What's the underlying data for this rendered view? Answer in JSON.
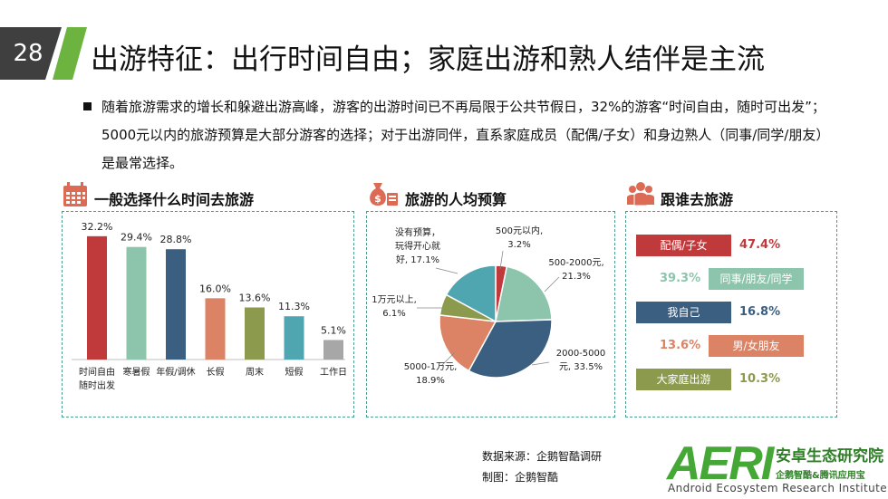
{
  "page_number": "28",
  "title": "出游特征：出行时间自由；家庭出游和熟人结伴是主流",
  "intro_text": "随着旅游需求的增长和躲避出游高峰，游客的出游时间已不再局限于公共节假日，32%的游客“时间自由，随时可出发”；5000元以内的旅游预算是大部分游客的选择；对于出游同伴，直系家庭成员（配偶/子女）和身边熟人（同事/同学/朋友）是最常选择。",
  "sections": {
    "time": {
      "title": "一般选择什么时间去旅游",
      "icon": "calendar-icon"
    },
    "budget": {
      "title": "旅游的人均预算",
      "icon": "money-bag-icon"
    },
    "companion": {
      "title": "跟谁去旅游",
      "icon": "group-icon"
    }
  },
  "chart_data": [
    {
      "type": "bar",
      "categories": [
        "时间自由\n随时出发",
        "寒暑假",
        "年假/调休",
        "长假",
        "周末",
        "短假",
        "工作日"
      ],
      "values": [
        32.2,
        29.4,
        28.8,
        16.0,
        13.6,
        11.3,
        5.1
      ],
      "value_labels": [
        "32.2%",
        "29.4%",
        "28.8%",
        "16.0%",
        "13.6%",
        "11.3%",
        "5.1%"
      ],
      "colors": [
        "#c0393b",
        "#8dc5ac",
        "#3b5f80",
        "#dc8265",
        "#8c9a4e",
        "#4fa6b1",
        "#a7a7a7"
      ],
      "ylim": [
        0,
        35
      ],
      "grid": false
    },
    {
      "type": "pie",
      "labels": [
        "500元以内,",
        "500-2000元,",
        "2000-5000元,",
        "5000-1万元,",
        "1万元以上,",
        "没有预算，玩得开心就好,"
      ],
      "values": [
        3.2,
        21.3,
        33.5,
        18.9,
        6.1,
        17.1
      ],
      "value_labels": [
        "3.2%",
        "21.3%",
        "33.5%",
        "18.9%",
        "6.1%",
        "17.1%"
      ],
      "label_lines": [
        [
          "500元以内,",
          "3.2%"
        ],
        [
          "500-2000元,",
          "21.3%"
        ],
        [
          "2000-5000",
          "元, 33.5%"
        ],
        [
          "5000-1万元,",
          "18.9%"
        ],
        [
          "1万元以上,",
          "6.1%"
        ],
        [
          "没有预算，",
          "玩得开心就",
          "好, 17.1%"
        ]
      ],
      "colors": [
        "#c0393b",
        "#8dc5ac",
        "#3b5f80",
        "#dc8265",
        "#8c9a4e",
        "#4fa6b1"
      ]
    },
    {
      "type": "table",
      "rows": [
        {
          "label": "配偶/子女",
          "value": 47.4,
          "value_label": "47.4%",
          "color": "#c0393b",
          "side": "left"
        },
        {
          "label": "同事/朋友/同学",
          "value": 39.3,
          "value_label": "39.3%",
          "color": "#8dc5ac",
          "side": "right"
        },
        {
          "label": "我自己",
          "value": 16.8,
          "value_label": "16.8%",
          "color": "#3b5f80",
          "side": "left"
        },
        {
          "label": "男/女朋友",
          "value": 13.6,
          "value_label": "13.6%",
          "color": "#dc8265",
          "side": "right"
        },
        {
          "label": "大家庭出游",
          "value": 10.3,
          "value_label": "10.3%",
          "color": "#8c9a4e",
          "side": "left"
        }
      ]
    }
  ],
  "footer": {
    "source": "数据来源：企鹅智酷调研",
    "producer": "制图：企鹅智酷"
  },
  "logo": {
    "mark": "AERI",
    "name_cn": "安卓生态研究院",
    "tagline_cn": "企鹅智酷&腾讯应用宝",
    "name_en": "Android Ecosystem Research Institute",
    "color": "#45a836"
  }
}
